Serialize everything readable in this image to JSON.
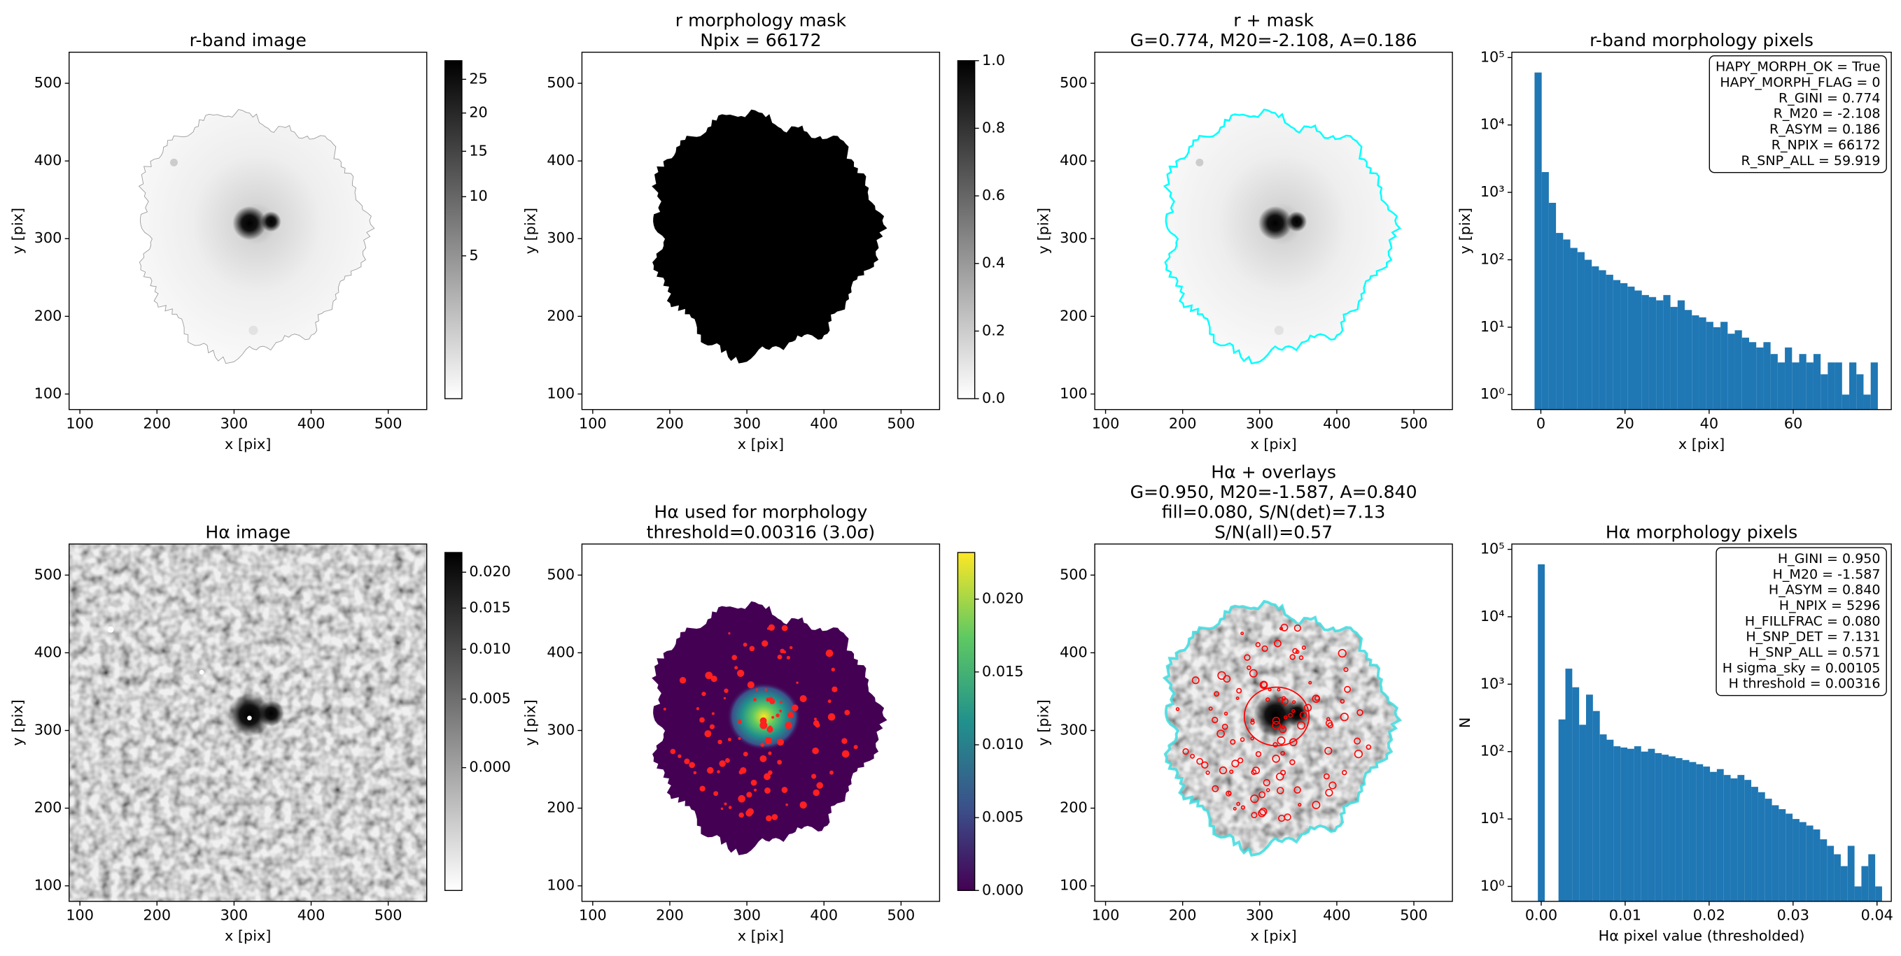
{
  "chart_data": [
    {
      "type": "image",
      "title": [
        "r-band image"
      ],
      "xlabel": "x [pix]",
      "ylabel": "y [pix]",
      "xlim": [
        86,
        550
      ],
      "ylim": [
        80,
        540
      ],
      "xticks": [
        100,
        200,
        300,
        400,
        500
      ],
      "yticks": [
        100,
        200,
        300,
        400,
        500
      ],
      "colorbar": {
        "colormap": "gray_r",
        "scale": "sqrt",
        "clim": [
          0,
          28
        ],
        "ticks": [
          5,
          10,
          15,
          20,
          25
        ]
      }
    },
    {
      "type": "image",
      "title": [
        "r morphology mask",
        "Npix = 66172"
      ],
      "xlabel": "x [pix]",
      "ylabel": "y [pix]",
      "xlim": [
        86,
        550
      ],
      "ylim": [
        80,
        540
      ],
      "xticks": [
        100,
        200,
        300,
        400,
        500
      ],
      "yticks": [
        100,
        200,
        300,
        400,
        500
      ],
      "colorbar": {
        "colormap": "gray_r",
        "scale": "linear",
        "clim": [
          0,
          1
        ],
        "ticks": [
          {
            "value": 0,
            "label": "0.0"
          },
          0.2,
          0.4,
          0.6,
          0.8,
          {
            "value": 1,
            "label": "1.0"
          }
        ]
      }
    },
    {
      "type": "image",
      "title": [
        "r + mask",
        "G=0.774, M20=-2.108, A=0.186"
      ],
      "xlabel": "x [pix]",
      "ylabel": "y [pix]",
      "xlim": [
        86,
        550
      ],
      "ylim": [
        80,
        540
      ],
      "xticks": [
        100,
        200,
        300,
        400,
        500
      ],
      "yticks": [
        100,
        200,
        300,
        400,
        500
      ]
    },
    {
      "type": "histogram",
      "title": [
        "r-band morphology pixels"
      ],
      "xlabel": "x [pix]",
      "ylabel": "y [pix]",
      "color": "#1f77b4",
      "bins": [
        -1.5,
        0.2,
        1.9,
        3.6,
        5.3,
        7.0,
        8.7,
        10.4,
        12.1,
        13.8,
        15.5,
        17.2,
        18.9,
        20.6,
        22.3,
        24.0,
        25.7,
        27.4,
        29.1,
        30.8,
        32.5,
        34.2,
        35.9,
        37.6,
        39.3,
        41.0,
        42.7,
        44.4,
        46.1,
        47.8,
        49.5,
        51.2,
        52.9,
        54.6,
        56.3,
        58.0,
        59.7,
        61.4,
        63.1,
        64.8,
        66.5,
        68.2,
        69.9,
        71.6,
        73.3,
        75.0,
        76.7,
        78.4,
        80.1
      ],
      "counts": [
        60000,
        2000,
        700,
        250,
        200,
        150,
        130,
        100,
        80,
        70,
        60,
        50,
        45,
        40,
        35,
        30,
        28,
        25,
        30,
        20,
        25,
        18,
        15,
        14,
        12,
        10,
        12,
        8,
        9,
        7,
        6,
        5,
        6,
        4,
        3,
        5,
        3,
        4,
        3,
        4,
        2,
        3,
        3,
        1,
        3,
        2,
        1,
        3
      ],
      "xlim": [
        -6.9,
        83.3
      ],
      "xticks": [
        0,
        20,
        40,
        60
      ],
      "yscale": "log",
      "ylim": [
        0.6,
        120000
      ],
      "yticks": [
        {
          "value": 1,
          "label": "10⁰"
        },
        {
          "value": 10,
          "label": "10¹"
        },
        {
          "value": 100,
          "label": "10²"
        },
        {
          "value": 1000,
          "label": "10³"
        },
        {
          "value": 10000,
          "label": "10⁴"
        },
        {
          "value": 100000,
          "label": "10⁵"
        }
      ],
      "annotation": [
        "HAPY_MORPH_OK = True",
        "HAPY_MORPH_FLAG = 0",
        "R_GINI = 0.774",
        "R_M20 = -2.108",
        "R_ASYM = 0.186",
        "R_NPIX = 66172",
        "R_SNP_ALL = 59.919"
      ]
    },
    {
      "type": "image",
      "title": [
        "Hα image"
      ],
      "xlabel": "x [pix]",
      "ylabel": "y [pix]",
      "xlim": [
        86,
        550
      ],
      "ylim": [
        80,
        540
      ],
      "xticks": [
        100,
        200,
        300,
        400,
        500
      ],
      "yticks": [
        100,
        200,
        300,
        400,
        500
      ],
      "colorbar": {
        "colormap": "gray_r",
        "scale": "sqrt",
        "clim": [
          -0.0035,
          0.023
        ],
        "ticks": [
          {
            "value": 0,
            "label": "0.000"
          },
          0.005,
          {
            "value": 0.01,
            "label": "0.010"
          },
          0.015,
          {
            "value": 0.02,
            "label": "0.020"
          }
        ]
      }
    },
    {
      "type": "image",
      "title": [
        "Hα used for morphology",
        "threshold=0.00316 (3.0σ)"
      ],
      "xlabel": "x [pix]",
      "ylabel": "y [pix]",
      "xlim": [
        86,
        550
      ],
      "ylim": [
        80,
        540
      ],
      "xticks": [
        100,
        200,
        300,
        400,
        500
      ],
      "yticks": [
        100,
        200,
        300,
        400,
        500
      ],
      "colorbar": {
        "colormap": "viridis",
        "scale": "linear",
        "clim": [
          0,
          0.0232
        ],
        "ticks": [
          {
            "value": 0,
            "label": "0.000"
          },
          0.005,
          {
            "value": 0.01,
            "label": "0.010"
          },
          0.015,
          {
            "value": 0.02,
            "label": "0.020"
          }
        ]
      }
    },
    {
      "type": "image",
      "title": [
        "Hα + overlays",
        "G=0.950, M20=-1.587, A=0.840",
        "fill=0.080, S/N(det)=7.13",
        "S/N(all)=0.57"
      ],
      "xlabel": "x [pix]",
      "ylabel": "y [pix]",
      "xlim": [
        86,
        550
      ],
      "ylim": [
        80,
        540
      ],
      "xticks": [
        100,
        200,
        300,
        400,
        500
      ],
      "yticks": [
        100,
        200,
        300,
        400,
        500
      ]
    },
    {
      "type": "histogram",
      "title": [
        "Hα morphology pixels"
      ],
      "xlabel": "Hα pixel value (thresholded)",
      "ylabel": "N",
      "color": "#1f77b4",
      "bins": [
        -0.0004,
        0.00042,
        0.00124,
        0.00206,
        0.00288,
        0.0037,
        0.00452,
        0.00534,
        0.00616,
        0.00698,
        0.0078,
        0.00862,
        0.00944,
        0.01026,
        0.01108,
        0.0119,
        0.01272,
        0.01354,
        0.01436,
        0.01518,
        0.016,
        0.01682,
        0.01764,
        0.01846,
        0.01928,
        0.0201,
        0.02092,
        0.02174,
        0.02256,
        0.02338,
        0.0242,
        0.02502,
        0.02584,
        0.02666,
        0.02748,
        0.0283,
        0.02912,
        0.02994,
        0.03076,
        0.03158,
        0.0324,
        0.03322,
        0.03404,
        0.03486,
        0.03568,
        0.0365,
        0.03732,
        0.03814,
        0.03896,
        0.03978,
        0.0406
      ],
      "counts": [
        60000,
        0,
        0,
        300,
        1700,
        900,
        250,
        700,
        400,
        180,
        150,
        120,
        115,
        110,
        120,
        100,
        110,
        95,
        90,
        85,
        80,
        75,
        70,
        65,
        60,
        50,
        55,
        45,
        40,
        45,
        38,
        30,
        25,
        20,
        16,
        14,
        12,
        10,
        9,
        8,
        7,
        5,
        4,
        3,
        2,
        4,
        1,
        2,
        3,
        1
      ],
      "xlim": [
        -0.0035,
        0.0417
      ],
      "xticks": [
        {
          "value": 0,
          "label": "0.00"
        },
        0.01,
        0.02,
        0.03,
        0.04
      ],
      "yscale": "log",
      "ylim": [
        0.6,
        120000
      ],
      "yticks": [
        {
          "value": 1,
          "label": "10⁰"
        },
        {
          "value": 10,
          "label": "10¹"
        },
        {
          "value": 100,
          "label": "10²"
        },
        {
          "value": 1000,
          "label": "10³"
        },
        {
          "value": 10000,
          "label": "10⁴"
        },
        {
          "value": 100000,
          "label": "10⁵"
        }
      ],
      "annotation": [
        "H_GINI = 0.950",
        "H_M20 = -1.587",
        "H_ASYM = 0.840",
        "H_NPIX = 5296",
        "H_FILLFRAC = 0.080",
        "H_SNP_DET = 7.131",
        "H_SNP_ALL = 0.571",
        "H sigma_sky = 0.00105",
        "H threshold = 0.00316"
      ]
    }
  ]
}
